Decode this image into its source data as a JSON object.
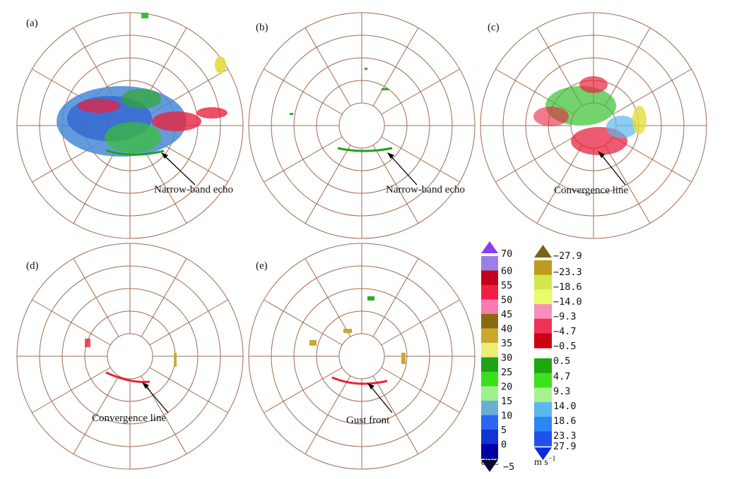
{
  "panels": [
    {
      "label": "(a)",
      "annotation": "Narrow-band echo"
    },
    {
      "label": "(b)",
      "annotation": "Narrow-band echo"
    },
    {
      "label": "(c)",
      "annotation": "Convergence line"
    },
    {
      "label": "(d)",
      "annotation": "Convergence line"
    },
    {
      "label": "(e)",
      "annotation": "Gust front"
    }
  ],
  "reflectivity_legend": {
    "unit": "dBZ",
    "levels": [
      "70",
      "60",
      "55",
      "50",
      "45",
      "40",
      "35",
      "30",
      "25",
      "20",
      "15",
      "10",
      "5",
      "0",
      "−5"
    ],
    "colors": [
      "#9a7fe6",
      "#c4001c",
      "#f02044",
      "#f77ab2",
      "#8a6a10",
      "#c9a82a",
      "#eced72",
      "#1fa21a",
      "#38e018",
      "#9ef08e",
      "#6aaed8",
      "#2c66f2",
      "#1033d6",
      "#0000a4"
    ],
    "top_arrow_color": "#8a3cf0",
    "bottom_arrow_color": "#08083a"
  },
  "velocity_legend": {
    "unit_main": "m s",
    "unit_exp": "−1",
    "levels": [
      "−27.9",
      "−23.3",
      "−18.6",
      "−14.0",
      "−9.3",
      "−4.7",
      "−0.5",
      "0.5",
      "4.7",
      "9.3",
      "14.0",
      "18.6",
      "23.3",
      "27.9"
    ],
    "negative_colors": [
      "#c09a1e",
      "#d2e84a",
      "#e9fa6a",
      "#f890be",
      "#ef3258",
      "#cc0010"
    ],
    "positive_colors": [
      "#1ea60e",
      "#3ce01e",
      "#a8f090",
      "#5ab8ee",
      "#2e86f2",
      "#1f52e8"
    ],
    "top_arrow_color": "#7a6410",
    "bottom_arrow_color": "#0a2de0"
  }
}
